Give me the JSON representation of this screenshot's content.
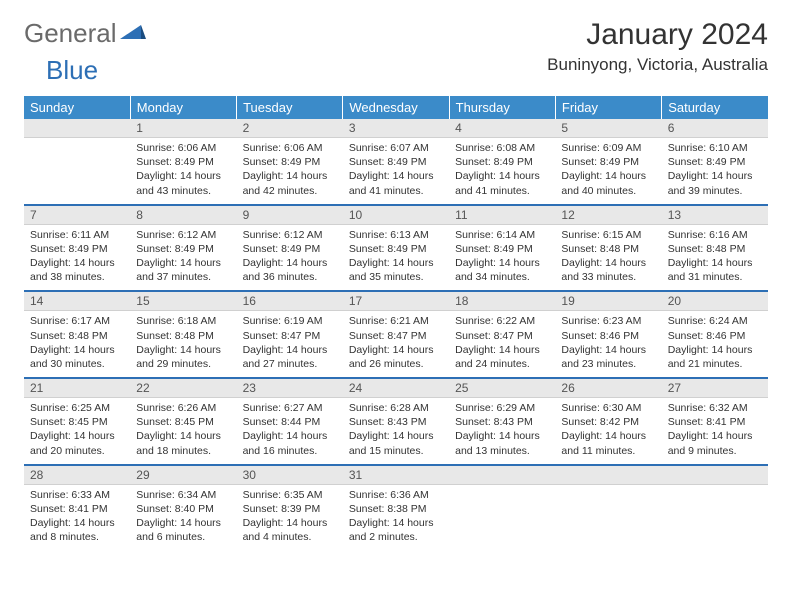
{
  "logo": {
    "gray": "General",
    "blue": "Blue"
  },
  "title": "January 2024",
  "location": "Buninyong, Victoria, Australia",
  "colors": {
    "header_bg": "#3b8bc9",
    "header_text": "#ffffff",
    "daynum_bg": "#e8e8e8",
    "separator": "#2d6fb5",
    "body_text": "#333333",
    "logo_gray": "#6a6a6a",
    "logo_blue": "#2d6fb5"
  },
  "typography": {
    "title_fontsize": 30,
    "location_fontsize": 17,
    "dayheader_fontsize": 13,
    "daynum_fontsize": 12,
    "body_fontsize": 10.5
  },
  "day_headers": [
    "Sunday",
    "Monday",
    "Tuesday",
    "Wednesday",
    "Thursday",
    "Friday",
    "Saturday"
  ],
  "weeks": [
    [
      {
        "n": "",
        "lines": []
      },
      {
        "n": "1",
        "lines": [
          "Sunrise: 6:06 AM",
          "Sunset: 8:49 PM",
          "Daylight: 14 hours and 43 minutes."
        ]
      },
      {
        "n": "2",
        "lines": [
          "Sunrise: 6:06 AM",
          "Sunset: 8:49 PM",
          "Daylight: 14 hours and 42 minutes."
        ]
      },
      {
        "n": "3",
        "lines": [
          "Sunrise: 6:07 AM",
          "Sunset: 8:49 PM",
          "Daylight: 14 hours and 41 minutes."
        ]
      },
      {
        "n": "4",
        "lines": [
          "Sunrise: 6:08 AM",
          "Sunset: 8:49 PM",
          "Daylight: 14 hours and 41 minutes."
        ]
      },
      {
        "n": "5",
        "lines": [
          "Sunrise: 6:09 AM",
          "Sunset: 8:49 PM",
          "Daylight: 14 hours and 40 minutes."
        ]
      },
      {
        "n": "6",
        "lines": [
          "Sunrise: 6:10 AM",
          "Sunset: 8:49 PM",
          "Daylight: 14 hours and 39 minutes."
        ]
      }
    ],
    [
      {
        "n": "7",
        "lines": [
          "Sunrise: 6:11 AM",
          "Sunset: 8:49 PM",
          "Daylight: 14 hours and 38 minutes."
        ]
      },
      {
        "n": "8",
        "lines": [
          "Sunrise: 6:12 AM",
          "Sunset: 8:49 PM",
          "Daylight: 14 hours and 37 minutes."
        ]
      },
      {
        "n": "9",
        "lines": [
          "Sunrise: 6:12 AM",
          "Sunset: 8:49 PM",
          "Daylight: 14 hours and 36 minutes."
        ]
      },
      {
        "n": "10",
        "lines": [
          "Sunrise: 6:13 AM",
          "Sunset: 8:49 PM",
          "Daylight: 14 hours and 35 minutes."
        ]
      },
      {
        "n": "11",
        "lines": [
          "Sunrise: 6:14 AM",
          "Sunset: 8:49 PM",
          "Daylight: 14 hours and 34 minutes."
        ]
      },
      {
        "n": "12",
        "lines": [
          "Sunrise: 6:15 AM",
          "Sunset: 8:48 PM",
          "Daylight: 14 hours and 33 minutes."
        ]
      },
      {
        "n": "13",
        "lines": [
          "Sunrise: 6:16 AM",
          "Sunset: 8:48 PM",
          "Daylight: 14 hours and 31 minutes."
        ]
      }
    ],
    [
      {
        "n": "14",
        "lines": [
          "Sunrise: 6:17 AM",
          "Sunset: 8:48 PM",
          "Daylight: 14 hours and 30 minutes."
        ]
      },
      {
        "n": "15",
        "lines": [
          "Sunrise: 6:18 AM",
          "Sunset: 8:48 PM",
          "Daylight: 14 hours and 29 minutes."
        ]
      },
      {
        "n": "16",
        "lines": [
          "Sunrise: 6:19 AM",
          "Sunset: 8:47 PM",
          "Daylight: 14 hours and 27 minutes."
        ]
      },
      {
        "n": "17",
        "lines": [
          "Sunrise: 6:21 AM",
          "Sunset: 8:47 PM",
          "Daylight: 14 hours and 26 minutes."
        ]
      },
      {
        "n": "18",
        "lines": [
          "Sunrise: 6:22 AM",
          "Sunset: 8:47 PM",
          "Daylight: 14 hours and 24 minutes."
        ]
      },
      {
        "n": "19",
        "lines": [
          "Sunrise: 6:23 AM",
          "Sunset: 8:46 PM",
          "Daylight: 14 hours and 23 minutes."
        ]
      },
      {
        "n": "20",
        "lines": [
          "Sunrise: 6:24 AM",
          "Sunset: 8:46 PM",
          "Daylight: 14 hours and 21 minutes."
        ]
      }
    ],
    [
      {
        "n": "21",
        "lines": [
          "Sunrise: 6:25 AM",
          "Sunset: 8:45 PM",
          "Daylight: 14 hours and 20 minutes."
        ]
      },
      {
        "n": "22",
        "lines": [
          "Sunrise: 6:26 AM",
          "Sunset: 8:45 PM",
          "Daylight: 14 hours and 18 minutes."
        ]
      },
      {
        "n": "23",
        "lines": [
          "Sunrise: 6:27 AM",
          "Sunset: 8:44 PM",
          "Daylight: 14 hours and 16 minutes."
        ]
      },
      {
        "n": "24",
        "lines": [
          "Sunrise: 6:28 AM",
          "Sunset: 8:43 PM",
          "Daylight: 14 hours and 15 minutes."
        ]
      },
      {
        "n": "25",
        "lines": [
          "Sunrise: 6:29 AM",
          "Sunset: 8:43 PM",
          "Daylight: 14 hours and 13 minutes."
        ]
      },
      {
        "n": "26",
        "lines": [
          "Sunrise: 6:30 AM",
          "Sunset: 8:42 PM",
          "Daylight: 14 hours and 11 minutes."
        ]
      },
      {
        "n": "27",
        "lines": [
          "Sunrise: 6:32 AM",
          "Sunset: 8:41 PM",
          "Daylight: 14 hours and 9 minutes."
        ]
      }
    ],
    [
      {
        "n": "28",
        "lines": [
          "Sunrise: 6:33 AM",
          "Sunset: 8:41 PM",
          "Daylight: 14 hours and 8 minutes."
        ]
      },
      {
        "n": "29",
        "lines": [
          "Sunrise: 6:34 AM",
          "Sunset: 8:40 PM",
          "Daylight: 14 hours and 6 minutes."
        ]
      },
      {
        "n": "30",
        "lines": [
          "Sunrise: 6:35 AM",
          "Sunset: 8:39 PM",
          "Daylight: 14 hours and 4 minutes."
        ]
      },
      {
        "n": "31",
        "lines": [
          "Sunrise: 6:36 AM",
          "Sunset: 8:38 PM",
          "Daylight: 14 hours and 2 minutes."
        ]
      },
      {
        "n": "",
        "lines": []
      },
      {
        "n": "",
        "lines": []
      },
      {
        "n": "",
        "lines": []
      }
    ]
  ]
}
